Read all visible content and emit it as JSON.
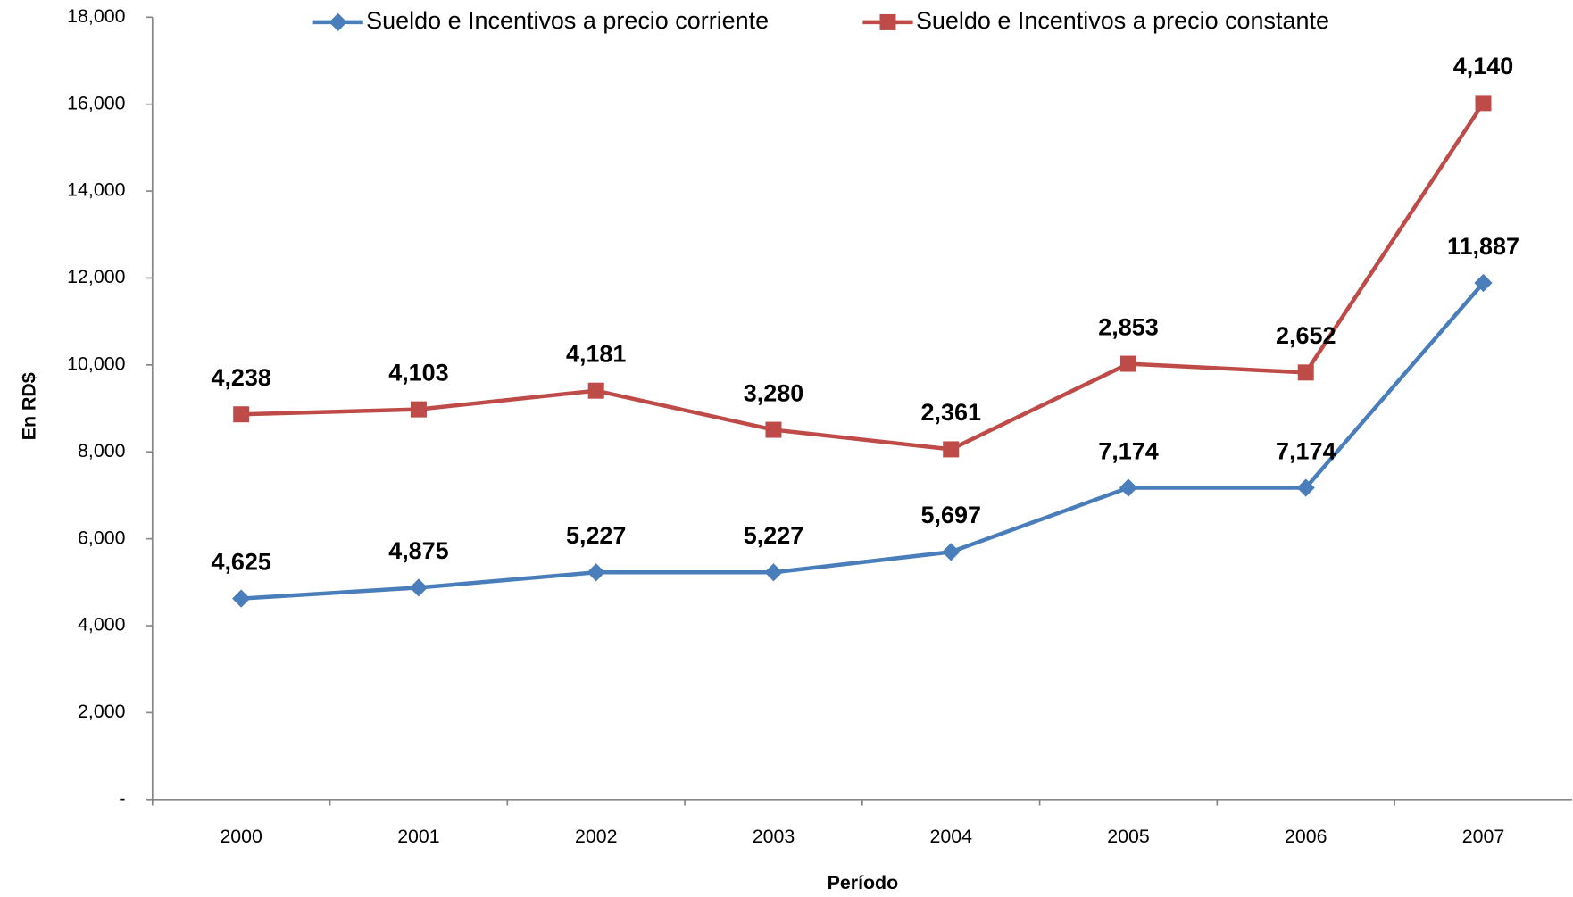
{
  "chart_data": {
    "type": "line",
    "stacked": true,
    "x_label": "Período",
    "y_label": "En RD$",
    "categories": [
      "2000",
      "2001",
      "2002",
      "2003",
      "2004",
      "2005",
      "2006",
      "2007"
    ],
    "series": [
      {
        "name": "Sueldo e Incentivos a precio corriente",
        "color": "#4a7ebb",
        "marker": "diamond",
        "values": [
          4625,
          4875,
          5227,
          5227,
          5697,
          7174,
          7174,
          11887
        ],
        "value_labels": [
          "4,625",
          "4,875",
          "5,227",
          "5,227",
          "5,697",
          "7,174",
          "7,174",
          "11,887"
        ]
      },
      {
        "name": "Sueldo e Incentivos a precio constante",
        "color": "#be4b48",
        "marker": "square",
        "values": [
          4238,
          4103,
          4181,
          3280,
          2361,
          2853,
          2652,
          4140
        ],
        "value_labels": [
          "4,238",
          "4,103",
          "4,181",
          "3,280",
          "2,361",
          "2,853",
          "2,652",
          "4,140"
        ]
      }
    ],
    "ylim": [
      0,
      18000
    ],
    "yticks": [
      {
        "value": 0,
        "label": "-"
      },
      {
        "value": 2000,
        "label": "2,000"
      },
      {
        "value": 4000,
        "label": "4,000"
      },
      {
        "value": 6000,
        "label": "6,000"
      },
      {
        "value": 8000,
        "label": "8,000"
      },
      {
        "value": 10000,
        "label": "10,000"
      },
      {
        "value": 12000,
        "label": "12,000"
      },
      {
        "value": 14000,
        "label": "14,000"
      },
      {
        "value": 16000,
        "label": "16,000"
      },
      {
        "value": 18000,
        "label": "18,000"
      }
    ],
    "grid": false,
    "legend": "top"
  }
}
